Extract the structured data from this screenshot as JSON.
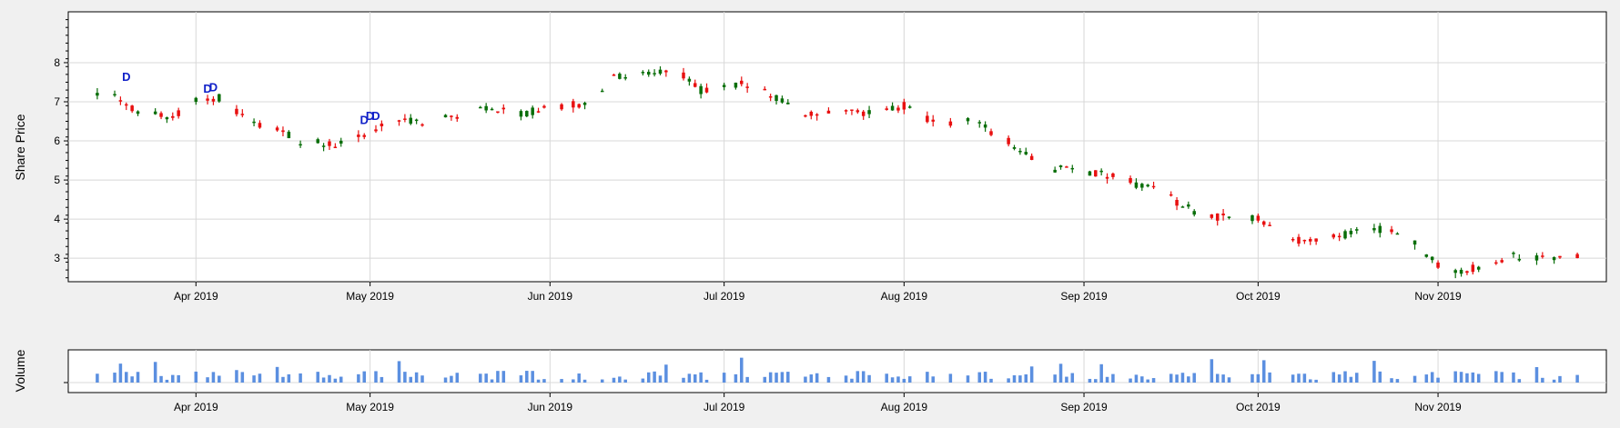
{
  "chart_data": [
    {
      "type": "candlestick",
      "ylabel": "Share Price",
      "ylim": [
        2.4,
        9.3
      ],
      "yticks": [
        3,
        4,
        5,
        6,
        7,
        8
      ],
      "xlim": [
        "2019-03-10",
        "2019-11-30"
      ],
      "xticks": [
        {
          "date": "2019-04-01",
          "label": "Apr 2019"
        },
        {
          "date": "2019-05-01",
          "label": "May 2019"
        },
        {
          "date": "2019-06-01",
          "label": "Jun 2019"
        },
        {
          "date": "2019-07-01",
          "label": "Jul 2019"
        },
        {
          "date": "2019-08-01",
          "label": "Aug 2019"
        },
        {
          "date": "2019-09-01",
          "label": "Sep 2019"
        },
        {
          "date": "2019-10-01",
          "label": "Oct 2019"
        },
        {
          "date": "2019-11-01",
          "label": "Nov 2019"
        }
      ],
      "grid": true,
      "up_color": "#0a6e0a",
      "down_color": "#e81010",
      "trend": [
        [
          "2019-03-15",
          7.2
        ],
        [
          "2019-03-19",
          7.1
        ],
        [
          "2019-03-22",
          6.7
        ],
        [
          "2019-03-28",
          6.65
        ],
        [
          "2019-04-01",
          7.0
        ],
        [
          "2019-04-05",
          7.1
        ],
        [
          "2019-04-10",
          6.5
        ],
        [
          "2019-04-15",
          6.3
        ],
        [
          "2019-04-19",
          6.0
        ],
        [
          "2019-04-25",
          5.9
        ],
        [
          "2019-04-30",
          6.2
        ],
        [
          "2019-05-05",
          6.5
        ],
        [
          "2019-05-12",
          6.5
        ],
        [
          "2019-05-20",
          6.8
        ],
        [
          "2019-05-27",
          6.7
        ],
        [
          "2019-06-03",
          6.9
        ],
        [
          "2019-06-08",
          7.0
        ],
        [
          "2019-06-12",
          7.6
        ],
        [
          "2019-06-18",
          7.7
        ],
        [
          "2019-06-22",
          7.9
        ],
        [
          "2019-06-27",
          7.3
        ],
        [
          "2019-07-02",
          7.5
        ],
        [
          "2019-07-08",
          7.3
        ],
        [
          "2019-07-14",
          6.7
        ],
        [
          "2019-07-20",
          6.7
        ],
        [
          "2019-07-26",
          6.7
        ],
        [
          "2019-08-01",
          6.9
        ],
        [
          "2019-08-07",
          6.4
        ],
        [
          "2019-08-13",
          6.5
        ],
        [
          "2019-08-19",
          6.0
        ],
        [
          "2019-08-23",
          5.6
        ],
        [
          "2019-08-27",
          5.3
        ],
        [
          "2019-09-03",
          5.2
        ],
        [
          "2019-09-08",
          5.0
        ],
        [
          "2019-09-14",
          4.7
        ],
        [
          "2019-09-20",
          4.2
        ],
        [
          "2019-09-26",
          4.0
        ],
        [
          "2019-10-01",
          4.0
        ],
        [
          "2019-10-05",
          3.5
        ],
        [
          "2019-10-10",
          3.4
        ],
        [
          "2019-10-16",
          3.6
        ],
        [
          "2019-10-21",
          3.8
        ],
        [
          "2019-10-27",
          3.5
        ],
        [
          "2019-10-31",
          3.0
        ],
        [
          "2019-11-03",
          2.55
        ],
        [
          "2019-11-08",
          2.8
        ],
        [
          "2019-11-14",
          3.05
        ],
        [
          "2019-11-20",
          2.95
        ],
        [
          "2019-11-25",
          3.05
        ]
      ],
      "dividend_markers": [
        {
          "date": "2019-03-20",
          "price": 7.65,
          "label": "D"
        },
        {
          "date": "2019-04-03",
          "price": 7.35,
          "label": "D"
        },
        {
          "date": "2019-04-04",
          "price": 7.38,
          "label": "D"
        },
        {
          "date": "2019-04-30",
          "price": 6.55,
          "label": "D"
        },
        {
          "date": "2019-05-01",
          "price": 6.65,
          "label": "D"
        },
        {
          "date": "2019-05-02",
          "price": 6.65,
          "label": "D"
        }
      ]
    },
    {
      "type": "bar",
      "ylabel": "Volume",
      "bar_color": "#5b8fe0",
      "note": "daily volume, unlabeled axis"
    }
  ]
}
